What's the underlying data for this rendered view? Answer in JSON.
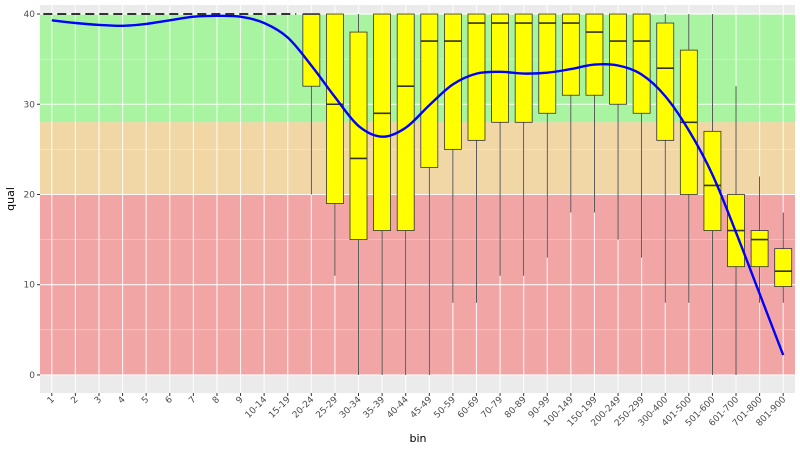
{
  "chart_data": {
    "type": "boxplot",
    "xlabel": "bin",
    "ylabel": "qual",
    "ylim": [
      -2,
      41
    ],
    "yticks": [
      0,
      10,
      20,
      30,
      40
    ],
    "categories": [
      "1",
      "2",
      "3",
      "4",
      "5",
      "6",
      "7",
      "8",
      "9",
      "10-14",
      "15-19",
      "20-24",
      "25-29",
      "30-34",
      "35-39",
      "40-44",
      "45-49",
      "50-59",
      "60-69",
      "70-79",
      "80-89",
      "90-99",
      "100-149",
      "150-199",
      "200-249",
      "250-299",
      "300-400",
      "401-500",
      "501-600",
      "601-700",
      "701-800",
      "801-900"
    ],
    "quality_bands": [
      {
        "from": 28,
        "to": 40,
        "color": "#a9f4a1"
      },
      {
        "from": 20,
        "to": 28,
        "color": "#f1d7a5"
      },
      {
        "from": 0,
        "to": 20,
        "color": "#f2a5a5"
      }
    ],
    "boxes": [
      {
        "lo": 40,
        "q1": 40,
        "med": 40,
        "q3": 40,
        "hi": 40
      },
      {
        "lo": 40,
        "q1": 40,
        "med": 40,
        "q3": 40,
        "hi": 40
      },
      {
        "lo": 40,
        "q1": 40,
        "med": 40,
        "q3": 40,
        "hi": 40
      },
      {
        "lo": 40,
        "q1": 40,
        "med": 40,
        "q3": 40,
        "hi": 40
      },
      {
        "lo": 40,
        "q1": 40,
        "med": 40,
        "q3": 40,
        "hi": 40
      },
      {
        "lo": 40,
        "q1": 40,
        "med": 40,
        "q3": 40,
        "hi": 40
      },
      {
        "lo": 40,
        "q1": 40,
        "med": 40,
        "q3": 40,
        "hi": 40
      },
      {
        "lo": 40,
        "q1": 40,
        "med": 40,
        "q3": 40,
        "hi": 40
      },
      {
        "lo": 40,
        "q1": 40,
        "med": 40,
        "q3": 40,
        "hi": 40
      },
      {
        "lo": 40,
        "q1": 40,
        "med": 40,
        "q3": 40,
        "hi": 40
      },
      {
        "lo": 40,
        "q1": 40,
        "med": 40,
        "q3": 40,
        "hi": 40
      },
      {
        "lo": 20,
        "q1": 32,
        "med": 40,
        "q3": 40,
        "hi": 40
      },
      {
        "lo": 11,
        "q1": 19,
        "med": 30,
        "q3": 40,
        "hi": 40
      },
      {
        "lo": 0,
        "q1": 15,
        "med": 24,
        "q3": 38,
        "hi": 40
      },
      {
        "lo": 0,
        "q1": 16,
        "med": 29,
        "q3": 40,
        "hi": 40
      },
      {
        "lo": 0,
        "q1": 16,
        "med": 32,
        "q3": 40,
        "hi": 40
      },
      {
        "lo": 0,
        "q1": 23,
        "med": 37,
        "q3": 40,
        "hi": 40
      },
      {
        "lo": 8,
        "q1": 25,
        "med": 37,
        "q3": 40,
        "hi": 40
      },
      {
        "lo": 8,
        "q1": 26,
        "med": 39,
        "q3": 40,
        "hi": 40
      },
      {
        "lo": 11,
        "q1": 28,
        "med": 39,
        "q3": 40,
        "hi": 40
      },
      {
        "lo": 11,
        "q1": 28,
        "med": 39,
        "q3": 40,
        "hi": 40
      },
      {
        "lo": 13,
        "q1": 29,
        "med": 39,
        "q3": 40,
        "hi": 40
      },
      {
        "lo": 18,
        "q1": 31,
        "med": 39,
        "q3": 40,
        "hi": 40
      },
      {
        "lo": 18,
        "q1": 31,
        "med": 38,
        "q3": 40,
        "hi": 40
      },
      {
        "lo": 15,
        "q1": 30,
        "med": 37,
        "q3": 40,
        "hi": 40
      },
      {
        "lo": 13,
        "q1": 29,
        "med": 37,
        "q3": 40,
        "hi": 40
      },
      {
        "lo": 8,
        "q1": 26,
        "med": 34,
        "q3": 39,
        "hi": 40
      },
      {
        "lo": 8,
        "q1": 20,
        "med": 28,
        "q3": 36,
        "hi": 40
      },
      {
        "lo": 0,
        "q1": 16,
        "med": 21,
        "q3": 27,
        "hi": 40
      },
      {
        "lo": 0,
        "q1": 12,
        "med": 16,
        "q3": 20,
        "hi": 32
      },
      {
        "lo": 8,
        "q1": 12,
        "med": 15,
        "q3": 16,
        "hi": 22
      },
      {
        "lo": 8,
        "q1": 9.8,
        "med": 11.5,
        "q3": 14,
        "hi": 18
      }
    ],
    "mean_line": [
      39.3,
      39.0,
      38.8,
      38.7,
      38.9,
      39.3,
      39.7,
      39.8,
      39.7,
      39.0,
      37.4,
      34.3,
      30.8,
      27.6,
      26.4,
      27.4,
      29.9,
      32.2,
      33.4,
      33.6,
      33.4,
      33.5,
      33.9,
      34.4,
      34.3,
      33.3,
      30.9,
      27.1,
      22.2,
      15.8,
      9.0,
      2.2
    ],
    "mean_line_color": "#0000ff",
    "box_fill": "#ffff00",
    "panel_bg": "#ebebeb",
    "grid_color": "#ffffff"
  }
}
